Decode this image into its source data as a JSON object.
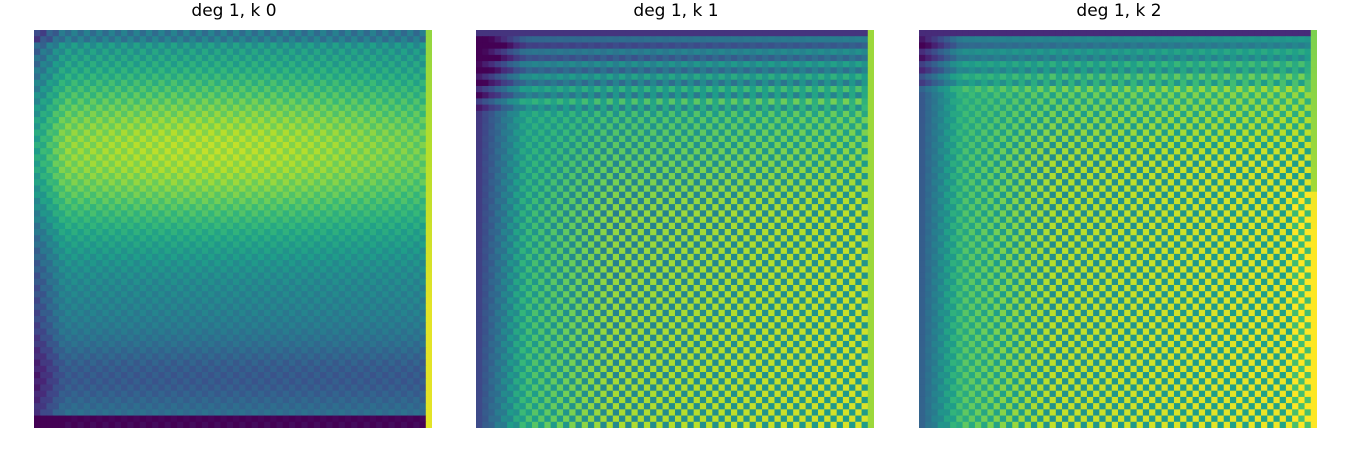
{
  "chart_data": [
    {
      "type": "heatmap",
      "title": "deg 1, k 0",
      "grid": false,
      "axes_visible": false,
      "colormap": "viridis",
      "colormap_stops": [
        "#440154",
        "#482878",
        "#3e4989",
        "#31688e",
        "#26828e",
        "#1f9e89",
        "#35b779",
        "#6ece58",
        "#b5de2b",
        "#fde725"
      ],
      "rows": 64,
      "cols": 64,
      "description_values": {
        "hot_region": "upper band",
        "cold_region": "bottom edge"
      }
    },
    {
      "type": "heatmap",
      "title": "deg 1, k 1",
      "grid": false,
      "axes_visible": false,
      "colormap": "viridis",
      "colormap_stops": [
        "#440154",
        "#482878",
        "#3e4989",
        "#31688e",
        "#26828e",
        "#1f9e89",
        "#35b779",
        "#6ece58",
        "#b5de2b",
        "#fde725"
      ],
      "rows": 64,
      "cols": 64,
      "description_values": {
        "hot_region": "checkerboard interior",
        "cold_region": "top and left edges"
      }
    },
    {
      "type": "heatmap",
      "title": "deg 1, k 2",
      "grid": false,
      "axes_visible": false,
      "colormap": "viridis",
      "colormap_stops": [
        "#440154",
        "#482878",
        "#3e4989",
        "#31688e",
        "#26828e",
        "#1f9e89",
        "#35b779",
        "#6ece58",
        "#b5de2b",
        "#fde725"
      ],
      "rows": 64,
      "cols": 64,
      "description_values": {
        "hot_region": "right and lower interior",
        "cold_region": "top and left edges"
      }
    }
  ]
}
